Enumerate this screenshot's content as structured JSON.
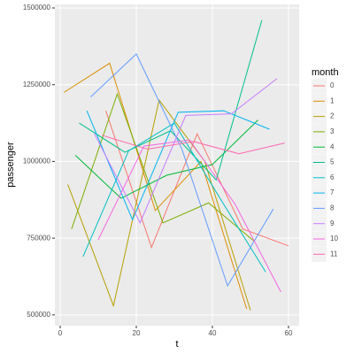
{
  "chart_data": {
    "type": "line",
    "x_label": "t",
    "y_label": "passenger",
    "legend_title": "month",
    "xlim": [
      -1.4,
      62.8
    ],
    "ylim": [
      465000,
      1511500
    ],
    "xticks": [
      0,
      20,
      40,
      60
    ],
    "yticks": [
      500000,
      750000,
      1000000,
      1250000,
      1500000
    ],
    "grid": true,
    "legend_position": "right",
    "series": [
      {
        "name": "0",
        "color": "#F8766D",
        "x": [
          12,
          24,
          36,
          48,
          60
        ],
        "values": [
          1165000,
          720000,
          1090000,
          780000,
          725000
        ]
      },
      {
        "name": "1",
        "color": "#DE8C00",
        "x": [
          1,
          13,
          25,
          37,
          49
        ],
        "values": [
          1225000,
          1320000,
          840000,
          1000000,
          520000
        ]
      },
      {
        "name": "2",
        "color": "#B79F00",
        "x": [
          2,
          14,
          26,
          38,
          50
        ],
        "values": [
          925000,
          530000,
          1200000,
          1000000,
          515000
        ]
      },
      {
        "name": "3",
        "color": "#7CAE00",
        "x": [
          3,
          15,
          27,
          39,
          51
        ],
        "values": [
          780000,
          1220000,
          800000,
          865000,
          740000
        ]
      },
      {
        "name": "4",
        "color": "#00BA38",
        "x": [
          4,
          16,
          28,
          40,
          52
        ],
        "values": [
          1020000,
          880000,
          955000,
          990000,
          1135000
        ]
      },
      {
        "name": "5",
        "color": "#00C08B",
        "x": [
          5,
          17,
          29,
          41,
          53
        ],
        "values": [
          1125000,
          1030000,
          1100000,
          940000,
          1460000
        ]
      },
      {
        "name": "6",
        "color": "#00BFC4",
        "x": [
          6,
          18,
          30,
          42,
          54
        ],
        "values": [
          690000,
          1035000,
          1125000,
          880000,
          640000
        ]
      },
      {
        "name": "7",
        "color": "#00B4F0",
        "x": [
          7,
          19,
          31,
          43,
          55
        ],
        "values": [
          1165000,
          810000,
          1160000,
          1165000,
          1105000
        ]
      },
      {
        "name": "8",
        "color": "#619CFF",
        "x": [
          8,
          20,
          32,
          44,
          56
        ],
        "values": [
          1210000,
          1350000,
          1040000,
          595000,
          845000
        ]
      },
      {
        "name": "9",
        "color": "#C77CFF",
        "x": [
          9,
          21,
          33,
          45,
          57
        ],
        "values": [
          1090000,
          800000,
          1150000,
          1155000,
          1270000
        ]
      },
      {
        "name": "10",
        "color": "#F564E3",
        "x": [
          10,
          22,
          34,
          46,
          58
        ],
        "values": [
          745000,
          1050000,
          1070000,
          860000,
          575000
        ]
      },
      {
        "name": "11",
        "color": "#FF64B0",
        "x": [
          11,
          23,
          35,
          47,
          59
        ],
        "values": [
          1085000,
          1040000,
          1065000,
          1025000,
          1060000
        ]
      }
    ]
  }
}
